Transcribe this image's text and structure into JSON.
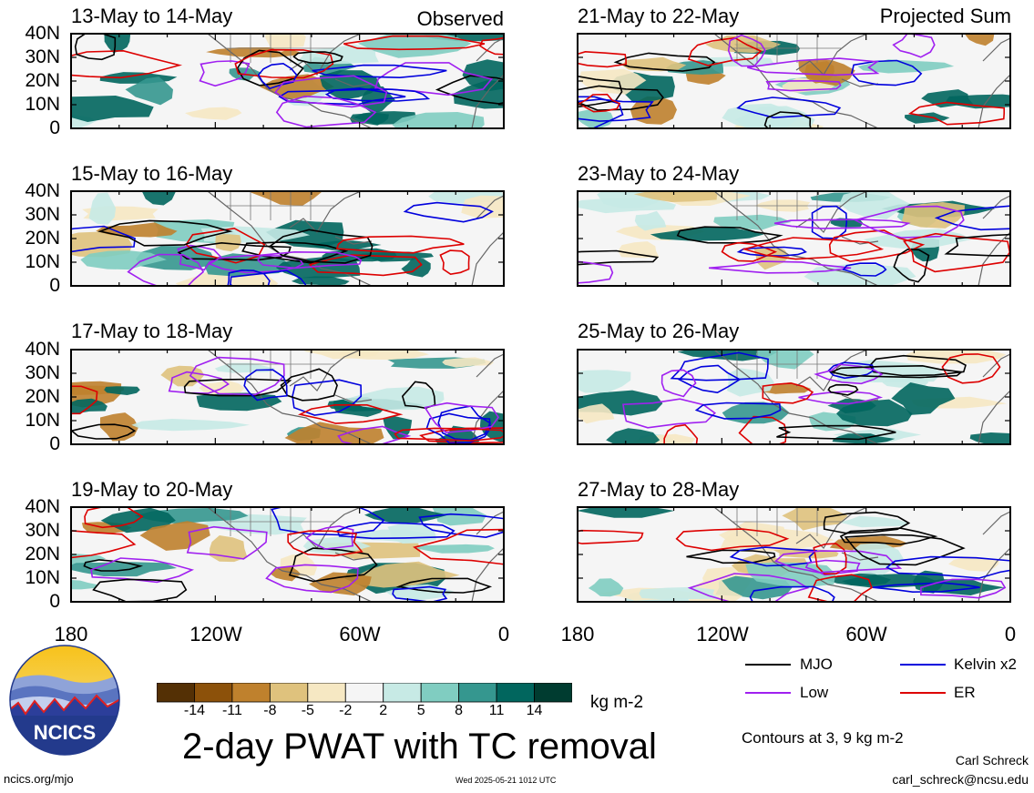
{
  "panels": [
    {
      "title": "13-May to 14-May",
      "tag": "Observed"
    },
    {
      "title": "15-May to 16-May",
      "tag": ""
    },
    {
      "title": "17-May to 18-May",
      "tag": ""
    },
    {
      "title": "19-May to 20-May",
      "tag": ""
    },
    {
      "title": "21-May to 22-May",
      "tag": "Projected Sum"
    },
    {
      "title": "23-May to 24-May",
      "tag": ""
    },
    {
      "title": "25-May to 26-May",
      "tag": ""
    },
    {
      "title": "27-May to 28-May",
      "tag": ""
    }
  ],
  "y_ticks": [
    "40N",
    "30N",
    "20N",
    "10N",
    "0"
  ],
  "x_ticks": [
    "180",
    "120W",
    "60W",
    "0"
  ],
  "colorbar": {
    "labels": [
      "-14",
      "-11",
      "-8",
      "-5",
      "-2",
      "2",
      "5",
      "8",
      "11",
      "14"
    ],
    "colors": [
      "#543005",
      "#8c510a",
      "#bf812d",
      "#dfc27d",
      "#f6e8c3",
      "#f5f5f5",
      "#c7eae5",
      "#80cdc1",
      "#35978f",
      "#01665e",
      "#003c30"
    ],
    "units": "kg m-2"
  },
  "legend": {
    "items": [
      {
        "label": "MJO",
        "color": "#000000"
      },
      {
        "label": "Kelvin x2",
        "color": "#0000dd"
      },
      {
        "label": "Low",
        "color": "#a020f0"
      },
      {
        "label": "ER",
        "color": "#dd0000"
      }
    ],
    "contours_note": "Contours at 3, 9 kg m-2"
  },
  "footer": {
    "main_title": "2-day PWAT with TC removal",
    "logo_text": "NCICS",
    "url": "ncics.org/mjo",
    "timestamp": "Wed 2025-05-21 1012 UTC",
    "author": "Carl Schreck",
    "email": "carl_schreck@ncsu.edu"
  }
}
